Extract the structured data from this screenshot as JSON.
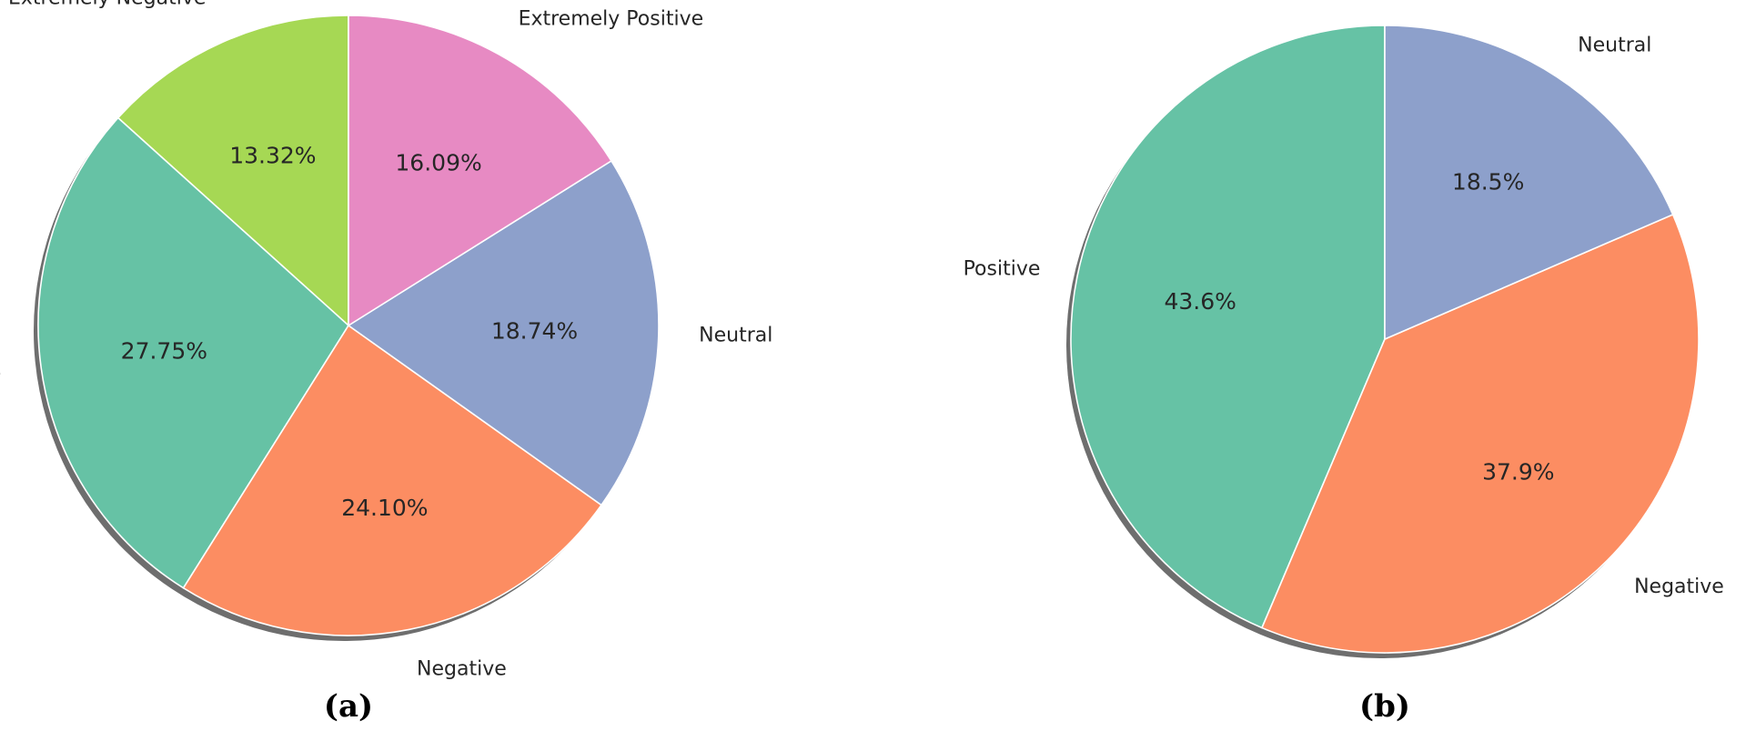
{
  "chart_data": [
    {
      "type": "pie",
      "panel_label": "(a)",
      "shadow": true,
      "start": "top",
      "direction": "counterclockwise",
      "slices": [
        {
          "label": "Extremely Negative",
          "value": 13.32,
          "value_label": "13.32%",
          "color": "#a6d854"
        },
        {
          "label": "Positive",
          "value": 27.75,
          "value_label": "27.75%",
          "color": "#66c2a5"
        },
        {
          "label": "Negative",
          "value": 24.1,
          "value_label": "24.10%",
          "color": "#fc8d62"
        },
        {
          "label": "Neutral",
          "value": 18.74,
          "value_label": "18.74%",
          "color": "#8da0cb"
        },
        {
          "label": "Extremely Positive",
          "value": 16.09,
          "value_label": "16.09%",
          "color": "#e78ac3"
        }
      ]
    },
    {
      "type": "pie",
      "panel_label": "(b)",
      "shadow": true,
      "start": "top",
      "direction": "counterclockwise",
      "slices": [
        {
          "label": "Positive",
          "value": 43.6,
          "value_label": "43.6%",
          "color": "#66c2a5"
        },
        {
          "label": "Negative",
          "value": 37.9,
          "value_label": "37.9%",
          "color": "#fc8d62"
        },
        {
          "label": "Neutral",
          "value": 18.5,
          "value_label": "18.5%",
          "color": "#8da0cb"
        }
      ]
    }
  ]
}
